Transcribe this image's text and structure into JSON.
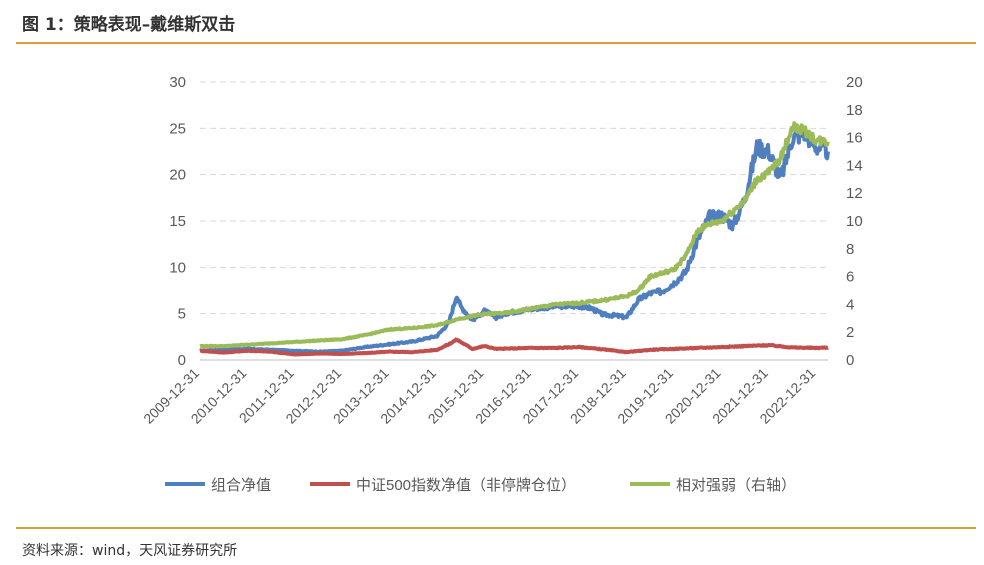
{
  "figure": {
    "title": "图 1：策略表现–戴维斯双击",
    "source": "资料来源：wind，天风证券研究所"
  },
  "chart_data": {
    "type": "line",
    "x_tick_labels": [
      "2009-12-31",
      "2010-12-31",
      "2011-12-31",
      "2012-12-31",
      "2013-12-31",
      "2014-12-31",
      "2015-12-31",
      "2016-12-31",
      "2017-12-31",
      "2018-12-31",
      "2019-12-31",
      "2020-12-31",
      "2021-12-31",
      "2022-12-31"
    ],
    "y_left": {
      "min": 0,
      "max": 30,
      "ticks": [
        0,
        5,
        10,
        15,
        20,
        25,
        30
      ]
    },
    "y_right": {
      "min": 0,
      "max": 20,
      "ticks": [
        0,
        2,
        4,
        6,
        8,
        10,
        12,
        14,
        16,
        18,
        20
      ]
    },
    "grid": "horizontal dashed",
    "legend_position": "bottom",
    "series": [
      {
        "name": "组合净值",
        "axis": "left",
        "color": "#4f7fbf",
        "points": [
          [
            "2009-12-31",
            1.0
          ],
          [
            "2010-06-30",
            1.1
          ],
          [
            "2010-12-31",
            1.2
          ],
          [
            "2011-06-30",
            1.1
          ],
          [
            "2011-12-31",
            1.0
          ],
          [
            "2012-06-30",
            0.9
          ],
          [
            "2012-12-31",
            1.0
          ],
          [
            "2013-06-30",
            1.4
          ],
          [
            "2013-12-31",
            1.7
          ],
          [
            "2014-06-30",
            2.0
          ],
          [
            "2014-12-31",
            2.6
          ],
          [
            "2015-03-31",
            4.0
          ],
          [
            "2015-06-01",
            7.0
          ],
          [
            "2015-06-30",
            5.8
          ],
          [
            "2015-09-30",
            4.3
          ],
          [
            "2015-12-31",
            5.3
          ],
          [
            "2016-03-31",
            4.6
          ],
          [
            "2016-06-30",
            5.1
          ],
          [
            "2016-12-31",
            5.5
          ],
          [
            "2017-06-30",
            5.8
          ],
          [
            "2017-12-31",
            5.8
          ],
          [
            "2018-03-31",
            5.6
          ],
          [
            "2018-06-30",
            4.9
          ],
          [
            "2018-09-30",
            4.8
          ],
          [
            "2018-12-31",
            4.6
          ],
          [
            "2019-03-31",
            6.5
          ],
          [
            "2019-06-30",
            7.2
          ],
          [
            "2019-09-30",
            7.4
          ],
          [
            "2019-12-31",
            8.3
          ],
          [
            "2020-03-31",
            9.5
          ],
          [
            "2020-06-30",
            13.0
          ],
          [
            "2020-09-30",
            15.5
          ],
          [
            "2020-12-31",
            15.6
          ],
          [
            "2021-03-31",
            14.5
          ],
          [
            "2021-06-30",
            17.5
          ],
          [
            "2021-09-30",
            23.0
          ],
          [
            "2021-12-31",
            22.5
          ],
          [
            "2022-03-31",
            19.5
          ],
          [
            "2022-06-30",
            24.0
          ],
          [
            "2022-09-30",
            24.5
          ],
          [
            "2022-12-31",
            23.0
          ],
          [
            "2023-03-31",
            22.5
          ]
        ]
      },
      {
        "name": "中证500指数净值（非停牌仓位）",
        "axis": "left",
        "color": "#c0504d",
        "points": [
          [
            "2009-12-31",
            1.0
          ],
          [
            "2010-06-30",
            0.8
          ],
          [
            "2010-12-31",
            1.0
          ],
          [
            "2011-06-30",
            0.9
          ],
          [
            "2011-12-31",
            0.6
          ],
          [
            "2012-06-30",
            0.7
          ],
          [
            "2012-12-31",
            0.65
          ],
          [
            "2013-06-30",
            0.75
          ],
          [
            "2013-12-31",
            0.9
          ],
          [
            "2014-06-30",
            0.85
          ],
          [
            "2014-12-31",
            1.1
          ],
          [
            "2015-03-31",
            1.7
          ],
          [
            "2015-06-01",
            2.2
          ],
          [
            "2015-09-30",
            1.2
          ],
          [
            "2015-12-31",
            1.5
          ],
          [
            "2016-03-31",
            1.2
          ],
          [
            "2016-12-31",
            1.3
          ],
          [
            "2017-06-30",
            1.3
          ],
          [
            "2017-12-31",
            1.4
          ],
          [
            "2018-06-30",
            1.15
          ],
          [
            "2018-12-31",
            0.85
          ],
          [
            "2019-06-30",
            1.1
          ],
          [
            "2019-12-31",
            1.2
          ],
          [
            "2020-06-30",
            1.3
          ],
          [
            "2020-12-31",
            1.4
          ],
          [
            "2021-06-30",
            1.5
          ],
          [
            "2021-12-31",
            1.6
          ],
          [
            "2022-06-30",
            1.35
          ],
          [
            "2022-12-31",
            1.3
          ],
          [
            "2023-03-31",
            1.35
          ]
        ]
      },
      {
        "name": "相对强弱（右轴）",
        "axis": "right",
        "color": "#9bbb59",
        "points": [
          [
            "2009-12-31",
            1.0
          ],
          [
            "2010-06-30",
            1.0
          ],
          [
            "2010-12-31",
            1.1
          ],
          [
            "2011-06-30",
            1.2
          ],
          [
            "2011-12-31",
            1.3
          ],
          [
            "2012-06-30",
            1.4
          ],
          [
            "2012-12-31",
            1.5
          ],
          [
            "2013-06-30",
            1.8
          ],
          [
            "2013-12-31",
            2.2
          ],
          [
            "2014-06-30",
            2.3
          ],
          [
            "2014-12-31",
            2.5
          ],
          [
            "2015-06-30",
            3.0
          ],
          [
            "2015-12-31",
            3.3
          ],
          [
            "2016-06-30",
            3.4
          ],
          [
            "2016-12-31",
            3.7
          ],
          [
            "2017-06-30",
            4.0
          ],
          [
            "2017-12-31",
            4.1
          ],
          [
            "2018-06-30",
            4.3
          ],
          [
            "2018-12-31",
            4.6
          ],
          [
            "2019-03-31",
            5.0
          ],
          [
            "2019-06-30",
            6.0
          ],
          [
            "2019-12-31",
            6.5
          ],
          [
            "2020-03-31",
            7.5
          ],
          [
            "2020-06-30",
            9.3
          ],
          [
            "2020-09-30",
            9.8
          ],
          [
            "2020-12-31",
            10.0
          ],
          [
            "2021-06-30",
            11.5
          ],
          [
            "2021-09-30",
            13.0
          ],
          [
            "2021-12-31",
            13.5
          ],
          [
            "2022-03-31",
            14.5
          ],
          [
            "2022-06-30",
            16.8
          ],
          [
            "2022-09-30",
            16.5
          ],
          [
            "2022-12-31",
            15.8
          ],
          [
            "2023-03-31",
            15.7
          ]
        ]
      }
    ]
  }
}
